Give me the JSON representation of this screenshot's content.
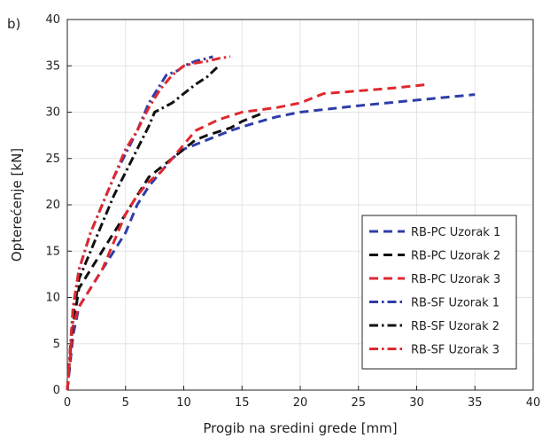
{
  "panel_label": "b)",
  "chart_data": {
    "type": "line",
    "title": "",
    "xlabel": "Progib na sredini grede [mm]",
    "ylabel": "Opterećenje [kN]",
    "xlim": [
      0,
      40
    ],
    "ylim": [
      0,
      40
    ],
    "xticks": [
      0,
      5,
      10,
      15,
      20,
      25,
      30,
      35,
      40
    ],
    "yticks": [
      0,
      5,
      10,
      15,
      20,
      25,
      30,
      35,
      40
    ],
    "grid": true,
    "legend_position": "bottom-right",
    "series": [
      {
        "name": "RB-PC Uzorak 1",
        "color": "#2e3da8",
        "dash": "dashed",
        "points": [
          [
            0,
            0
          ],
          [
            0.5,
            6
          ],
          [
            1,
            9
          ],
          [
            2,
            11
          ],
          [
            3,
            13
          ],
          [
            4,
            15
          ],
          [
            5,
            17
          ],
          [
            6,
            20
          ],
          [
            7,
            22
          ],
          [
            8,
            23.5
          ],
          [
            9,
            25
          ],
          [
            10,
            26
          ],
          [
            12,
            27
          ],
          [
            14,
            28
          ],
          [
            16,
            28.8
          ],
          [
            18,
            29.5
          ],
          [
            20,
            30
          ],
          [
            25,
            30.7
          ],
          [
            30,
            31.3
          ],
          [
            35,
            31.9
          ]
        ]
      },
      {
        "name": "RB-PC Uzorak 2",
        "color": "#111111",
        "dash": "dashed",
        "points": [
          [
            0,
            0
          ],
          [
            0.5,
            7
          ],
          [
            1,
            11
          ],
          [
            2,
            13
          ],
          [
            3,
            15
          ],
          [
            4,
            17
          ],
          [
            5,
            19
          ],
          [
            6,
            21
          ],
          [
            7,
            23
          ],
          [
            8,
            24
          ],
          [
            9,
            25
          ],
          [
            10,
            26
          ],
          [
            11,
            27
          ],
          [
            12,
            27.5
          ],
          [
            14,
            28.3
          ],
          [
            15,
            29
          ],
          [
            16,
            29.5
          ],
          [
            17,
            30
          ]
        ]
      },
      {
        "name": "RB-PC Uzorak 3",
        "color": "#e0282e",
        "dash": "dashed",
        "points": [
          [
            0,
            0
          ],
          [
            0.5,
            7
          ],
          [
            1,
            9
          ],
          [
            2,
            11
          ],
          [
            3,
            13
          ],
          [
            4,
            16
          ],
          [
            5,
            19
          ],
          [
            6,
            21
          ],
          [
            7,
            22.5
          ],
          [
            8,
            23.5
          ],
          [
            9,
            25
          ],
          [
            10,
            26.5
          ],
          [
            11,
            28
          ],
          [
            13,
            29.2
          ],
          [
            15,
            30
          ],
          [
            18,
            30.5
          ],
          [
            20,
            31
          ],
          [
            21,
            31.5
          ],
          [
            22,
            32
          ],
          [
            25,
            32.3
          ],
          [
            28,
            32.6
          ],
          [
            31,
            33
          ]
        ]
      },
      {
        "name": "RB-SF Uzorak 1",
        "color": "#2e3da8",
        "dash": "dashdot",
        "points": [
          [
            0,
            0
          ],
          [
            0.5,
            9
          ],
          [
            1,
            13
          ],
          [
            2,
            17
          ],
          [
            3,
            20
          ],
          [
            4,
            23
          ],
          [
            5,
            25.5
          ],
          [
            6,
            28
          ],
          [
            7,
            31
          ],
          [
            8,
            33
          ],
          [
            8.5,
            34
          ],
          [
            9.5,
            34.5
          ],
          [
            10,
            35
          ],
          [
            11,
            35.5
          ],
          [
            12,
            35.8
          ],
          [
            12.5,
            36
          ]
        ]
      },
      {
        "name": "RB-SF Uzorak 2",
        "color": "#111111",
        "dash": "dashdot",
        "points": [
          [
            0,
            0
          ],
          [
            0.5,
            8
          ],
          [
            1,
            12
          ],
          [
            2,
            15
          ],
          [
            3,
            18
          ],
          [
            4,
            21
          ],
          [
            5,
            23.5
          ],
          [
            6,
            26
          ],
          [
            7,
            28.5
          ],
          [
            7.5,
            30
          ],
          [
            9,
            31
          ],
          [
            10,
            32
          ],
          [
            11,
            33
          ],
          [
            12,
            33.8
          ],
          [
            13,
            35
          ]
        ]
      },
      {
        "name": "RB-SF Uzorak 3",
        "color": "#e0282e",
        "dash": "dashdot",
        "points": [
          [
            0,
            0
          ],
          [
            0.5,
            9
          ],
          [
            1,
            13
          ],
          [
            2,
            17
          ],
          [
            3,
            20
          ],
          [
            4,
            23
          ],
          [
            5,
            26
          ],
          [
            6,
            28
          ],
          [
            7,
            30.5
          ],
          [
            8,
            32.5
          ],
          [
            9,
            34
          ],
          [
            10,
            35
          ],
          [
            11,
            35.3
          ],
          [
            12,
            35.5
          ],
          [
            13,
            35.8
          ],
          [
            14,
            36
          ]
        ]
      }
    ]
  }
}
